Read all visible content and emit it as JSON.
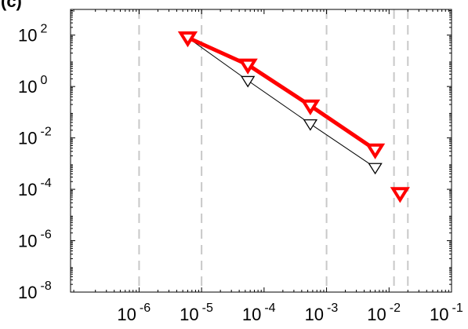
{
  "chart_data": {
    "type": "scatter",
    "title": "",
    "partial_label": "(c)",
    "xlabel": "",
    "ylabel": "",
    "xscale": "log",
    "yscale": "log",
    "xlim": [
      8e-08,
      0.1
    ],
    "ylim": [
      1e-08,
      1000
    ],
    "x_tick_values": [
      1e-06,
      1e-05,
      0.0001,
      0.001,
      0.01,
      0.1
    ],
    "x_tick_labels": [
      {
        "base": "10",
        "exp": "-6"
      },
      {
        "base": "10",
        "exp": "-5"
      },
      {
        "base": "10",
        "exp": "-4"
      },
      {
        "base": "10",
        "exp": "-3"
      },
      {
        "base": "10",
        "exp": "-2"
      },
      {
        "base": "10",
        "exp": "-1"
      }
    ],
    "y_tick_values": [
      1e-08,
      1e-06,
      0.0001,
      0.01,
      1,
      100
    ],
    "y_tick_labels": [
      {
        "base": "10",
        "exp": "-8"
      },
      {
        "base": "10",
        "exp": "-6"
      },
      {
        "base": "10",
        "exp": "-4"
      },
      {
        "base": "10",
        "exp": "-2"
      },
      {
        "base": "10",
        "exp": "0"
      },
      {
        "base": "10",
        "exp": "2"
      }
    ],
    "vertical_dashed_lines_x": [
      1e-06,
      1e-05,
      0.001,
      0.012,
      0.02
    ],
    "grid": false,
    "series": [
      {
        "color": "#000000",
        "marker": "triangle-down-open",
        "line": "thin",
        "x": [
          6e-06,
          5.5e-05,
          0.00055,
          0.006
        ],
        "y": [
          80,
          1.7,
          0.035,
          0.0007
        ]
      },
      {
        "color": "#ff0000",
        "marker": "triangle-down-open",
        "line": "thick",
        "x": [
          6e-06,
          5.5e-05,
          0.00055,
          0.006
        ],
        "y": [
          80,
          7,
          0.18,
          0.0035
        ]
      },
      {
        "color": "#ff0000",
        "marker": "triangle-down-open",
        "line": "none",
        "x": [
          0.015
        ],
        "y": [
          7e-05
        ]
      }
    ]
  }
}
